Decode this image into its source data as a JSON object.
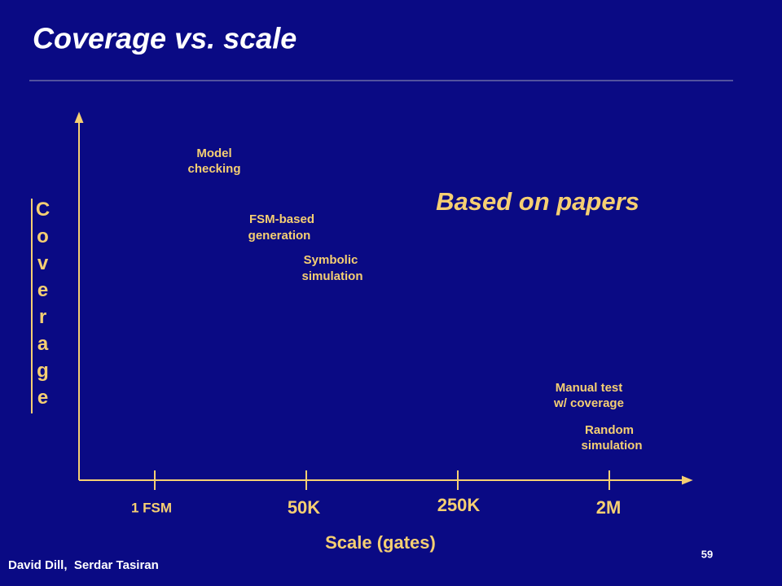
{
  "header": {
    "title": "Coverage vs. scale"
  },
  "axes": {
    "y_label": "Coverage",
    "x_label": "Scale (gates)",
    "x_ticks": [
      "1 FSM",
      "50K",
      "250K",
      "2M"
    ]
  },
  "annotation": "Based on papers",
  "nodes": [
    {
      "lines": [
        "Model",
        "checking"
      ]
    },
    {
      "lines": [
        "FSM-based",
        "generation"
      ]
    },
    {
      "lines": [
        "Symbolic",
        "simulation"
      ]
    },
    {
      "lines": [
        "Manual test",
        "w/ coverage"
      ]
    },
    {
      "lines": [
        "Random",
        "simulation"
      ]
    }
  ],
  "footer": {
    "authors": "David Dill,  Serdar Tasiran",
    "page": "59"
  }
}
